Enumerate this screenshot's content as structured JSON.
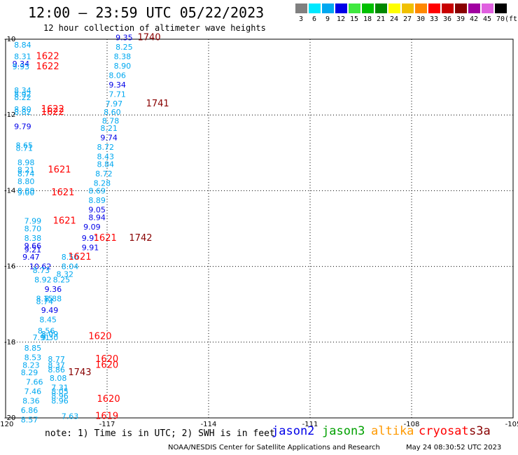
{
  "header": {
    "title": "12:00 – 23:59 UTC 05/22/2023",
    "subtitle": "12 hour collection of altimeter wave heights"
  },
  "scale": {
    "unit_label": "(ft)",
    "bins": [
      {
        "label": "3",
        "color": "#808080"
      },
      {
        "label": "6",
        "color": "#00e8ff"
      },
      {
        "label": "9",
        "color": "#00a8f0"
      },
      {
        "label": "12",
        "color": "#0000e8"
      },
      {
        "label": "15",
        "color": "#40e840"
      },
      {
        "label": "18",
        "color": "#00c000"
      },
      {
        "label": "21",
        "color": "#008800"
      },
      {
        "label": "24",
        "color": "#ffff00"
      },
      {
        "label": "27",
        "color": "#f0c000"
      },
      {
        "label": "30",
        "color": "#ff8800"
      },
      {
        "label": "33",
        "color": "#ff0000"
      },
      {
        "label": "36",
        "color": "#c80000"
      },
      {
        "label": "39",
        "color": "#880000"
      },
      {
        "label": "42",
        "color": "#a000a0"
      },
      {
        "label": "45",
        "color": "#e060e0"
      },
      {
        "label": "70",
        "color": "#000000"
      }
    ]
  },
  "chart_data": {
    "type": "scatter",
    "title": "12:00 – 23:59 UTC 05/22/2023",
    "subtitle": "12 hour collection of altimeter wave heights",
    "xlim": [
      -120,
      -105
    ],
    "ylim": [
      -20,
      -10
    ],
    "xticks": [
      -120,
      -117,
      -114,
      -111,
      -108,
      -105
    ],
    "xtick_labels": [
      "-120",
      "-117",
      "-114",
      "-111",
      "-108",
      "-105"
    ],
    "yticks": [
      -10,
      -12,
      -14,
      -16,
      -18,
      -20
    ],
    "ytick_labels": [
      "-10",
      "-12",
      "-14",
      "-16",
      "-18",
      "-20"
    ],
    "grid": true,
    "points": [
      {
        "x": -119.75,
        "y": -10.15,
        "label": "8.84",
        "color": "#00a8f0"
      },
      {
        "x": -116.75,
        "y": -9.95,
        "label": "9.35",
        "color": "#0000e8"
      },
      {
        "x": -116.1,
        "y": -9.95,
        "label": "1740",
        "color": "#880000"
      },
      {
        "x": -116.75,
        "y": -10.2,
        "label": "8.25",
        "color": "#00a8f0"
      },
      {
        "x": -119.75,
        "y": -10.45,
        "label": "8.31",
        "color": "#00a8f0"
      },
      {
        "x": -119.1,
        "y": -10.45,
        "label": "1622",
        "color": "#ff0000"
      },
      {
        "x": -116.8,
        "y": -10.45,
        "label": "8.38",
        "color": "#00a8f0"
      },
      {
        "x": -119.8,
        "y": -10.65,
        "label": "9.34",
        "color": "#0000e8"
      },
      {
        "x": -119.8,
        "y": -10.72,
        "label": "9.93",
        "color": "#00a8f0"
      },
      {
        "x": -119.1,
        "y": -10.72,
        "label": "1622",
        "color": "#ff0000"
      },
      {
        "x": -116.8,
        "y": -10.7,
        "label": "8.90",
        "color": "#00a8f0"
      },
      {
        "x": -116.95,
        "y": -10.95,
        "label": "8.06",
        "color": "#00a8f0"
      },
      {
        "x": -116.95,
        "y": -11.2,
        "label": "9.34",
        "color": "#0000e8"
      },
      {
        "x": -119.75,
        "y": -11.35,
        "label": "8.34",
        "color": "#00a8f0"
      },
      {
        "x": -119.75,
        "y": -11.45,
        "label": "8.92",
        "color": "#00a8f0"
      },
      {
        "x": -119.75,
        "y": -11.53,
        "label": "8.22",
        "color": "#00a8f0"
      },
      {
        "x": -116.95,
        "y": -11.45,
        "label": "7.71",
        "color": "#00a8f0"
      },
      {
        "x": -117.05,
        "y": -11.7,
        "label": "7.97",
        "color": "#00a8f0"
      },
      {
        "x": -115.85,
        "y": -11.7,
        "label": "1741",
        "color": "#880000"
      },
      {
        "x": -119.75,
        "y": -11.85,
        "label": "8.80",
        "color": "#00a8f0"
      },
      {
        "x": -119.75,
        "y": -11.92,
        "label": "8.82",
        "color": "#00a8f0"
      },
      {
        "x": -118.95,
        "y": -11.85,
        "label": "1622",
        "color": "#ff0000"
      },
      {
        "x": -118.95,
        "y": -11.92,
        "label": "1622",
        "color": "#ff0000"
      },
      {
        "x": -117.1,
        "y": -11.92,
        "label": "8.60",
        "color": "#00a8f0"
      },
      {
        "x": -117.15,
        "y": -12.15,
        "label": "8.78",
        "color": "#00a8f0"
      },
      {
        "x": -119.75,
        "y": -12.3,
        "label": "9.79",
        "color": "#0000e8"
      },
      {
        "x": -117.2,
        "y": -12.35,
        "label": "8.21",
        "color": "#00a8f0"
      },
      {
        "x": -117.2,
        "y": -12.6,
        "label": "9.74",
        "color": "#0000e8"
      },
      {
        "x": -119.7,
        "y": -12.8,
        "label": "8.65",
        "color": "#00a8f0"
      },
      {
        "x": -119.7,
        "y": -12.87,
        "label": "8.71",
        "color": "#00a8f0"
      },
      {
        "x": -117.3,
        "y": -12.85,
        "label": "8.72",
        "color": "#00a8f0"
      },
      {
        "x": -117.3,
        "y": -13.1,
        "label": "8.43",
        "color": "#00a8f0"
      },
      {
        "x": -119.65,
        "y": -13.25,
        "label": "8.98",
        "color": "#00a8f0"
      },
      {
        "x": -117.3,
        "y": -13.3,
        "label": "8.84",
        "color": "#00a8f0"
      },
      {
        "x": -119.65,
        "y": -13.45,
        "label": "8.21",
        "color": "#00a8f0"
      },
      {
        "x": -118.75,
        "y": -13.45,
        "label": "1621",
        "color": "#ff0000"
      },
      {
        "x": -119.65,
        "y": -13.55,
        "label": "8.74",
        "color": "#00a8f0"
      },
      {
        "x": -117.35,
        "y": -13.55,
        "label": "8.72",
        "color": "#00a8f0"
      },
      {
        "x": -119.65,
        "y": -13.75,
        "label": "8.80",
        "color": "#00a8f0"
      },
      {
        "x": -117.4,
        "y": -13.8,
        "label": "8.28",
        "color": "#00a8f0"
      },
      {
        "x": -119.65,
        "y": -14.0,
        "label": "8.88",
        "color": "#00a8f0"
      },
      {
        "x": -119.65,
        "y": -14.05,
        "label": "9.00",
        "color": "#00a8f0"
      },
      {
        "x": -118.65,
        "y": -14.05,
        "label": "1621",
        "color": "#ff0000"
      },
      {
        "x": -117.55,
        "y": -14.0,
        "label": "8.69",
        "color": "#00a8f0"
      },
      {
        "x": -117.55,
        "y": -14.25,
        "label": "8.89",
        "color": "#00a8f0"
      },
      {
        "x": -117.55,
        "y": -14.5,
        "label": "9.05",
        "color": "#0000e8"
      },
      {
        "x": -117.55,
        "y": -14.7,
        "label": "8.94",
        "color": "#0000e8"
      },
      {
        "x": -119.45,
        "y": -14.8,
        "label": "7.99",
        "color": "#00a8f0"
      },
      {
        "x": -118.6,
        "y": -14.8,
        "label": "1621",
        "color": "#ff0000"
      },
      {
        "x": -117.7,
        "y": -14.95,
        "label": "9.09",
        "color": "#0000e8"
      },
      {
        "x": -119.45,
        "y": -15.0,
        "label": "8.70",
        "color": "#00a8f0"
      },
      {
        "x": -119.45,
        "y": -15.25,
        "label": "8.38",
        "color": "#00a8f0"
      },
      {
        "x": -117.75,
        "y": -15.25,
        "label": "9.91",
        "color": "#0000e8"
      },
      {
        "x": -117.4,
        "y": -15.25,
        "label": "1621",
        "color": "#ff0000"
      },
      {
        "x": -116.35,
        "y": -15.25,
        "label": "1742",
        "color": "#880000"
      },
      {
        "x": -119.45,
        "y": -15.45,
        "label": "9.66",
        "color": "#0000e8"
      },
      {
        "x": -119.45,
        "y": -15.55,
        "label": "9.21",
        "color": "#0000e8"
      },
      {
        "x": -117.75,
        "y": -15.5,
        "label": "9.91",
        "color": "#0000e8"
      },
      {
        "x": -119.5,
        "y": -15.75,
        "label": "9.47",
        "color": "#0000e8"
      },
      {
        "x": -118.35,
        "y": -15.75,
        "label": "8.50",
        "color": "#00a8f0"
      },
      {
        "x": -118.15,
        "y": -15.75,
        "label": "1621",
        "color": "#ff0000"
      },
      {
        "x": -119.3,
        "y": -16.0,
        "label": "10.62",
        "color": "#0000e8"
      },
      {
        "x": -118.35,
        "y": -16.0,
        "label": "8.04",
        "color": "#00a8f0"
      },
      {
        "x": -119.2,
        "y": -16.1,
        "label": "8.73",
        "color": "#00a8f0"
      },
      {
        "x": -118.5,
        "y": -16.2,
        "label": "8.32",
        "color": "#00a8f0"
      },
      {
        "x": -119.15,
        "y": -16.35,
        "label": "8.92",
        "color": "#00a8f0"
      },
      {
        "x": -118.6,
        "y": -16.35,
        "label": "8.25",
        "color": "#00a8f0"
      },
      {
        "x": -118.85,
        "y": -16.6,
        "label": "9.36",
        "color": "#0000e8"
      },
      {
        "x": -119.1,
        "y": -16.85,
        "label": "8.15",
        "color": "#00a8f0"
      },
      {
        "x": -118.85,
        "y": -16.85,
        "label": "8.88",
        "color": "#00a8f0"
      },
      {
        "x": -119.1,
        "y": -16.92,
        "label": "8.74",
        "color": "#00a8f0"
      },
      {
        "x": -118.95,
        "y": -17.15,
        "label": "9.49",
        "color": "#0000e8"
      },
      {
        "x": -119.0,
        "y": -17.4,
        "label": "8.45",
        "color": "#00a8f0"
      },
      {
        "x": -119.05,
        "y": -17.7,
        "label": "8.56",
        "color": "#00a8f0"
      },
      {
        "x": -118.95,
        "y": -17.78,
        "label": "8.09",
        "color": "#00a8f0"
      },
      {
        "x": -119.2,
        "y": -17.87,
        "label": "7.91",
        "color": "#00a8f0"
      },
      {
        "x": -118.95,
        "y": -17.87,
        "label": "9.30",
        "color": "#00a8f0"
      },
      {
        "x": -117.55,
        "y": -17.85,
        "label": "1620",
        "color": "#ff0000"
      },
      {
        "x": -119.45,
        "y": -18.15,
        "label": "8.85",
        "color": "#00a8f0"
      },
      {
        "x": -119.45,
        "y": -18.4,
        "label": "8.53",
        "color": "#00a8f0"
      },
      {
        "x": -118.75,
        "y": -18.45,
        "label": "8.77",
        "color": "#00a8f0"
      },
      {
        "x": -117.35,
        "y": -18.45,
        "label": "1620",
        "color": "#ff0000"
      },
      {
        "x": -119.5,
        "y": -18.6,
        "label": "8.23",
        "color": "#00a8f0"
      },
      {
        "x": -118.75,
        "y": -18.6,
        "label": "8.37",
        "color": "#00a8f0"
      },
      {
        "x": -117.35,
        "y": -18.6,
        "label": "1620",
        "color": "#ff0000"
      },
      {
        "x": -118.75,
        "y": -18.72,
        "label": "8.86",
        "color": "#00a8f0"
      },
      {
        "x": -119.55,
        "y": -18.8,
        "label": "8.29",
        "color": "#00a8f0"
      },
      {
        "x": -118.15,
        "y": -18.8,
        "label": "1743",
        "color": "#880000"
      },
      {
        "x": -118.7,
        "y": -18.95,
        "label": "8.08",
        "color": "#00a8f0"
      },
      {
        "x": -119.4,
        "y": -19.05,
        "label": "7.66",
        "color": "#00a8f0"
      },
      {
        "x": -118.65,
        "y": -19.2,
        "label": "7.31",
        "color": "#00a8f0"
      },
      {
        "x": -119.45,
        "y": -19.3,
        "label": "7.46",
        "color": "#00a8f0"
      },
      {
        "x": -118.65,
        "y": -19.3,
        "label": "8.05",
        "color": "#00a8f0"
      },
      {
        "x": -118.65,
        "y": -19.42,
        "label": "8.96",
        "color": "#00a8f0"
      },
      {
        "x": -117.3,
        "y": -19.5,
        "label": "1620",
        "color": "#ff0000"
      },
      {
        "x": -119.5,
        "y": -19.55,
        "label": "8.36",
        "color": "#00a8f0"
      },
      {
        "x": -118.65,
        "y": -19.55,
        "label": "8.96",
        "color": "#00a8f0"
      },
      {
        "x": -119.55,
        "y": -19.8,
        "label": "6.86",
        "color": "#00a8f0"
      },
      {
        "x": -118.35,
        "y": -19.95,
        "label": "7.63",
        "color": "#00a8f0"
      },
      {
        "x": -117.35,
        "y": -19.95,
        "label": "1619",
        "color": "#ff0000"
      },
      {
        "x": -119.55,
        "y": -20.05,
        "label": "8.57",
        "color": "#00a8f0"
      }
    ]
  },
  "note": "note: 1) Time is in UTC; 2) SWH is in feet",
  "satellites": [
    {
      "name": "jason2",
      "color": "#0000e8"
    },
    {
      "name": "jason3",
      "color": "#00a000"
    },
    {
      "name": "altika",
      "color": "#ff9900"
    },
    {
      "name": "cryosat",
      "color": "#ff0000"
    },
    {
      "name": "s3a",
      "color": "#880000"
    }
  ],
  "footer": {
    "source": "NOAA/NESDIS Center for Satellite Applications and Research",
    "timestamp": "May 24 08:30:52 UTC 2023"
  }
}
